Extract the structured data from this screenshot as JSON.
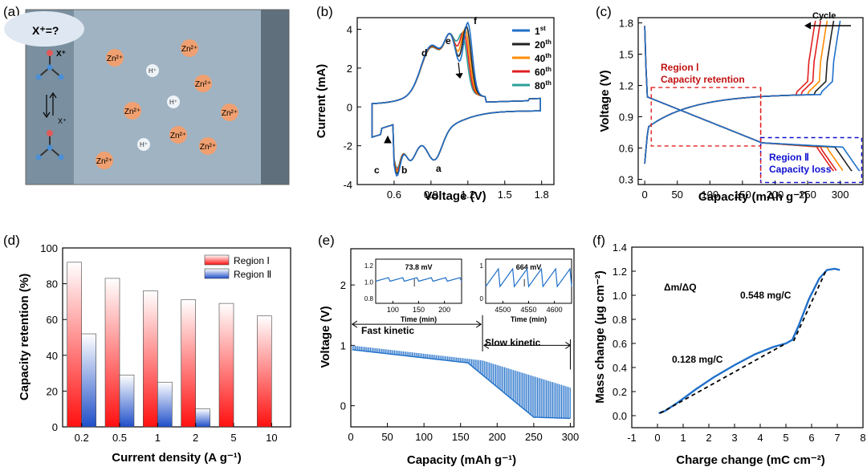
{
  "colors": {
    "blue": "#1f6fc9",
    "red": "#e02020",
    "orange": "#ff8c00",
    "black": "#222222",
    "teal": "#2aa198",
    "dark_red": "#c01010",
    "dash_blue": "#1010d0"
  },
  "panel_a": {
    "label": "(a)",
    "bubble": "X⁺=?",
    "xplus": "X⁺",
    "xplus2": "X⁺",
    "ions": [
      {
        "text": "Zn²⁺",
        "kind": "zn"
      },
      {
        "text": "Zn²⁺",
        "kind": "zn"
      },
      {
        "text": "Zn²⁺",
        "kind": "zn"
      },
      {
        "text": "Zn²⁺",
        "kind": "zn"
      },
      {
        "text": "Zn²⁺",
        "kind": "zn"
      },
      {
        "text": "Zn²⁺",
        "kind": "zn"
      },
      {
        "text": "Zn²⁺",
        "kind": "zn"
      },
      {
        "text": "Zn²⁺",
        "kind": "zn"
      },
      {
        "text": "H⁺",
        "kind": "h"
      },
      {
        "text": "H⁺",
        "kind": "h"
      },
      {
        "text": "H⁺",
        "kind": "h"
      }
    ]
  },
  "chart_data": [
    {
      "id": "b",
      "label": "(b)",
      "type": "line",
      "xlabel": "Voltage (V)",
      "ylabel": "Current (mA)",
      "xlim": [
        0.3,
        1.9
      ],
      "ylim": [
        -4,
        4.6
      ],
      "xticks": [
        "0.6",
        "0.9",
        "1.2",
        "1.5",
        "1.8"
      ],
      "xtick_values": [
        0.6,
        0.9,
        1.2,
        1.5,
        1.8
      ],
      "yticks": [
        "-4",
        "-2",
        "0",
        "2",
        "4"
      ],
      "ytick_values": [
        -4,
        -2,
        0,
        2,
        4
      ],
      "series": [
        {
          "name": "1",
          "sup": "st",
          "color_key": "blue"
        },
        {
          "name": "20",
          "sup": "th",
          "color_key": "black"
        },
        {
          "name": "40",
          "sup": "th",
          "color_key": "orange"
        },
        {
          "name": "60",
          "sup": "th",
          "color_key": "red"
        },
        {
          "name": "80",
          "sup": "th",
          "color_key": "teal"
        }
      ],
      "annotations": [
        "a",
        "b",
        "c",
        "d",
        "e",
        "f"
      ],
      "peaks_upper": [
        [
          0.9,
          2.5
        ],
        [
          1.06,
          2.8
        ],
        [
          1.2,
          4.2
        ]
      ],
      "peaks_lower": [
        [
          0.93,
          -2.6
        ],
        [
          0.72,
          -2.4
        ],
        [
          0.62,
          -3.1
        ]
      ]
    },
    {
      "id": "c",
      "label": "(c)",
      "type": "line",
      "xlabel": "Capacity (mAh g⁻¹)",
      "ylabel": "Voltage (V)",
      "xlim": [
        -10,
        335
      ],
      "ylim": [
        0.25,
        1.85
      ],
      "xticks": [
        "0",
        "50",
        "100",
        "150",
        "200",
        "250",
        "300"
      ],
      "xtick_values": [
        0,
        50,
        100,
        150,
        200,
        250,
        300
      ],
      "yticks": [
        "0.3",
        "0.6",
        "0.9",
        "1.2",
        "1.5",
        "1.8"
      ],
      "ytick_values": [
        0.3,
        0.6,
        0.9,
        1.2,
        1.5,
        1.8
      ],
      "charge_end_capacity": [
        300,
        290,
        280,
        270,
        262
      ],
      "discharge_end_capacity": [
        330,
        318,
        305,
        295,
        290
      ],
      "annotations": {
        "cycle": "Cycle",
        "region1_line1": "Region Ⅰ",
        "region1_line2": "Capacity retention",
        "region2_line1": "Region Ⅱ",
        "region2_line2": "Capacity loss"
      }
    },
    {
      "id": "d",
      "label": "(d)",
      "type": "bar",
      "xlabel": "Current density (A g⁻¹)",
      "ylabel": "Capacity retention (%)",
      "categories": [
        "0.2",
        "0.5",
        "1",
        "2",
        "5",
        "10"
      ],
      "series": [
        {
          "name": "Region Ⅰ",
          "values": [
            92,
            83,
            76,
            71,
            69,
            62
          ]
        },
        {
          "name": "Region Ⅱ",
          "values": [
            52,
            29,
            25,
            10,
            0,
            0
          ]
        }
      ],
      "ylim": [
        0,
        100
      ],
      "yticks": [
        "0",
        "20",
        "40",
        "60",
        "80",
        "100"
      ],
      "ytick_values": [
        0,
        20,
        40,
        60,
        80,
        100
      ]
    },
    {
      "id": "e",
      "label": "(e)",
      "type": "line",
      "xlabel": "Capacity (mAh g⁻¹)",
      "ylabel": "Voltage (V)",
      "xlim": [
        0,
        305
      ],
      "ylim": [
        -0.35,
        2.6
      ],
      "xticks": [
        "0",
        "50",
        "100",
        "150",
        "200",
        "250",
        "300"
      ],
      "xtick_values": [
        0,
        50,
        100,
        150,
        200,
        250,
        300
      ],
      "yticks": [
        "0",
        "1",
        "2"
      ],
      "ytick_values": [
        0,
        1,
        2
      ],
      "annotations": {
        "fast": "Fast kinetic",
        "slow": "Slow kinetic"
      },
      "inset1": {
        "value": "73.8 mV",
        "xlabel": "Time (min)",
        "xticks": [
          "100",
          "150",
          "200"
        ],
        "yticks": [
          "1.2",
          "1.0",
          "0.8"
        ]
      },
      "inset2": {
        "value": "664 mV",
        "xlabel": "Time (min)",
        "xticks": [
          "4500",
          "4550",
          "4600"
        ],
        "yticks": [
          "1",
          "0"
        ]
      }
    },
    {
      "id": "f",
      "label": "(f)",
      "type": "line",
      "xlabel": "Charge change (mC cm⁻²)",
      "ylabel": "Mass change (μg cm⁻²)",
      "xlim": [
        -1,
        8
      ],
      "ylim": [
        -0.1,
        1.4
      ],
      "xticks": [
        "-1",
        "0",
        "1",
        "2",
        "3",
        "4",
        "5",
        "6",
        "7",
        "8"
      ],
      "xtick_values": [
        -1,
        0,
        1,
        2,
        3,
        4,
        5,
        6,
        7,
        8
      ],
      "yticks": [
        "0.0",
        "0.2",
        "0.4",
        "0.6",
        "0.8",
        "1.0",
        "1.2",
        "1.4"
      ],
      "ytick_values": [
        0,
        0.2,
        0.4,
        0.6,
        0.8,
        1.0,
        1.2,
        1.4
      ],
      "x": [
        0.05,
        0.3,
        0.8,
        1.5,
        2.2,
        3.0,
        3.8,
        4.5,
        5.0,
        5.25,
        5.5,
        5.9,
        6.3,
        6.6,
        6.9,
        7.1
      ],
      "y": [
        0.02,
        0.04,
        0.11,
        0.22,
        0.32,
        0.42,
        0.51,
        0.57,
        0.6,
        0.63,
        0.75,
        0.97,
        1.14,
        1.21,
        1.22,
        1.21
      ],
      "annotations": {
        "title": "Δm/ΔQ",
        "slope1": "0.128 mg/C",
        "slope2": "0.548 mg/C"
      }
    }
  ]
}
